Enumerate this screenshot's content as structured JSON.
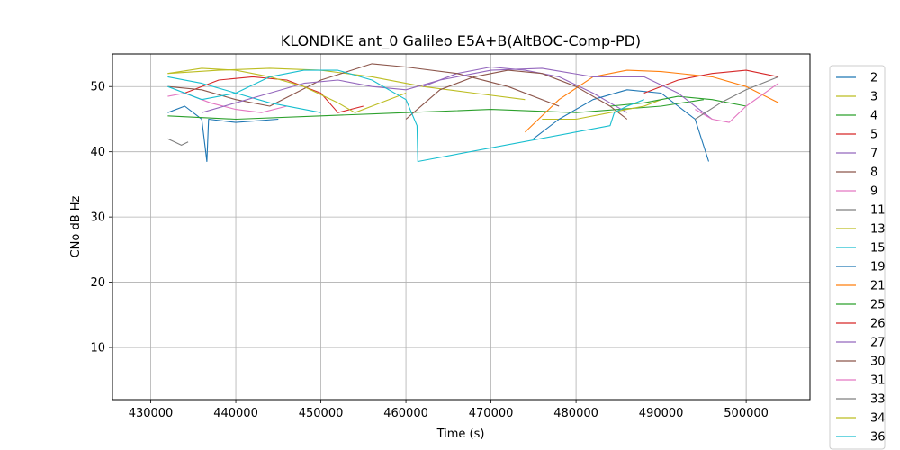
{
  "chart_data": {
    "type": "line",
    "title": "KLONDIKE ant_0 Galileo E5A+B(AltBOC-Comp-PD)",
    "xlabel": "Time (s)",
    "ylabel": "CNo dB Hz",
    "xlim": [
      425500,
      507500
    ],
    "ylim": [
      2,
      55
    ],
    "grid": true,
    "legend_position": "right-outside",
    "x_ticks": [
      430000,
      440000,
      450000,
      460000,
      470000,
      480000,
      490000,
      500000
    ],
    "x_tick_labels": [
      "430000",
      "440000",
      "450000",
      "460000",
      "470000",
      "480000",
      "490000",
      "500000"
    ],
    "y_ticks": [
      10,
      20,
      30,
      40,
      50
    ],
    "y_tick_labels": [
      "10",
      "20",
      "30",
      "40",
      "50"
    ],
    "series": [
      {
        "name": "2",
        "color": "#1f77b4",
        "x": [
          432000,
          434000,
          436000,
          436600,
          436800,
          440000,
          445000
        ],
        "y": [
          46,
          47,
          45,
          38.5,
          45,
          44.5,
          45
        ]
      },
      {
        "name": "3",
        "color": "#bcbd22",
        "x": [
          432000,
          438000,
          444000,
          450000,
          456000,
          462000,
          468000,
          474000
        ],
        "y": [
          52,
          52.5,
          52.8,
          52.5,
          51.5,
          50,
          49,
          48
        ]
      },
      {
        "name": "4",
        "color": "#2ca02c",
        "x": [
          432000,
          440000,
          450000,
          460000,
          470000,
          480000,
          490000,
          495000
        ],
        "y": [
          45.5,
          45,
          45.5,
          46,
          46.5,
          46,
          47,
          48
        ]
      },
      {
        "name": "5",
        "color": "#d62728",
        "x": [
          434000,
          438000,
          442000,
          446000,
          450000,
          452000,
          455000
        ],
        "y": [
          49,
          51,
          51.5,
          51,
          49,
          46,
          47
        ]
      },
      {
        "name": "7",
        "color": "#9467bd",
        "x": [
          462000,
          466000,
          470000,
          474000,
          478000,
          482000,
          486000
        ],
        "y": [
          50,
          52,
          53,
          52.5,
          51.5,
          49,
          46
        ]
      },
      {
        "name": "8",
        "color": "#8c564b",
        "x": [
          432000,
          436000,
          440000,
          444000,
          450000,
          456000,
          460000,
          466000,
          472000,
          478000
        ],
        "y": [
          50,
          49.5,
          48,
          47,
          51,
          53.5,
          53,
          52,
          50,
          47
        ]
      },
      {
        "name": "9",
        "color": "#e377c2",
        "x": [
          432000,
          434000,
          437000,
          440000,
          443000,
          446000
        ],
        "y": [
          48.5,
          49,
          47.5,
          46.5,
          46,
          47
        ]
      },
      {
        "name": "11",
        "color": "#7f7f7f",
        "x": [
          432000,
          432800,
          433600,
          434400
        ],
        "y": [
          42,
          41.5,
          41,
          41.5
        ]
      },
      {
        "name": "13",
        "color": "#bcbd22",
        "x": [
          476000,
          480000,
          484000,
          488000,
          490000
        ],
        "y": [
          45,
          45,
          46,
          47,
          48
        ]
      },
      {
        "name": "15",
        "color": "#17becf",
        "x": [
          432000,
          436000,
          440000,
          444000,
          448000,
          450000
        ],
        "y": [
          51.5,
          50.5,
          49,
          47.5,
          46.5,
          46
        ]
      },
      {
        "name": "19",
        "color": "#1f77b4",
        "x": [
          475000,
          478000,
          482000,
          486000,
          490000,
          494000,
          495600
        ],
        "y": [
          42,
          45,
          48,
          49.5,
          49,
          45,
          38.5
        ]
      },
      {
        "name": "21",
        "color": "#ff7f0e",
        "x": [
          474000,
          478000,
          482000,
          486000,
          490000,
          496000,
          500000,
          503800
        ],
        "y": [
          43,
          48,
          51.5,
          52.5,
          52.3,
          51.5,
          50,
          47.5
        ]
      },
      {
        "name": "25",
        "color": "#2ca02c",
        "x": [
          484000,
          488000,
          492000,
          496000,
          500000
        ],
        "y": [
          47,
          47.5,
          48.5,
          48,
          47
        ]
      },
      {
        "name": "26",
        "color": "#d62728",
        "x": [
          488000,
          492000,
          496000,
          500000,
          503800
        ],
        "y": [
          49,
          51,
          52,
          52.5,
          51.5
        ]
      },
      {
        "name": "27",
        "color": "#9467bd",
        "x": [
          436000,
          440000,
          444000,
          448000,
          452000,
          456000,
          460000,
          464000,
          470000,
          476000,
          482000,
          488000,
          492000,
          496000
        ],
        "y": [
          46,
          47.5,
          49,
          50.5,
          51,
          50,
          49.5,
          51,
          52.5,
          52.8,
          51.5,
          51.5,
          49,
          45
        ]
      },
      {
        "name": "30",
        "color": "#8c564b",
        "x": [
          460000,
          464000,
          468000,
          472000,
          476000,
          480000,
          484000,
          486000
        ],
        "y": [
          45,
          49.5,
          51.5,
          52.5,
          52,
          50,
          47,
          45
        ]
      },
      {
        "name": "31",
        "color": "#e377c2",
        "x": [
          494000,
          496000,
          498000,
          500000,
          503800
        ],
        "y": [
          46.5,
          45,
          44.5,
          47,
          50.5
        ]
      },
      {
        "name": "33",
        "color": "#7f7f7f",
        "x": [
          494000,
          497000,
          500000,
          503800
        ],
        "y": [
          45,
          47.5,
          49.5,
          51.5
        ]
      },
      {
        "name": "34",
        "color": "#bcbd22",
        "x": [
          432000,
          436000,
          440000,
          444000,
          448000,
          452000,
          454000,
          456000,
          460000
        ],
        "y": [
          52,
          52.8,
          52.5,
          51.5,
          50,
          47.5,
          46,
          47,
          49
        ]
      },
      {
        "name": "36",
        "color": "#17becf",
        "x": [
          432000,
          436000,
          440000,
          444000,
          448000,
          452000,
          456000,
          460000,
          461300,
          461400,
          484000,
          484500,
          486000,
          488000
        ],
        "y": [
          50,
          48,
          49,
          51.5,
          52.5,
          52.5,
          51,
          48,
          44,
          38.5,
          44,
          46,
          47,
          48
        ]
      }
    ]
  }
}
